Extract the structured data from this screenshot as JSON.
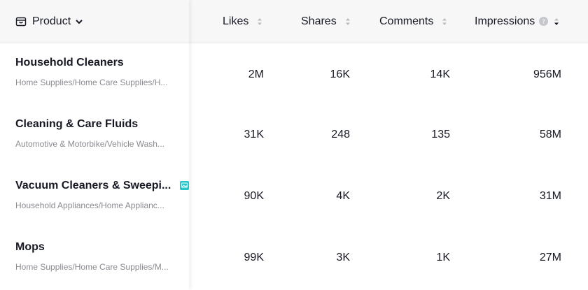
{
  "columns": {
    "product": "Product",
    "likes": "Likes",
    "shares": "Shares",
    "comments": "Comments",
    "impressions": "Impressions"
  },
  "rows": [
    {
      "name": "Household Cleaners",
      "category": "Home Supplies/Home Care Supplies/H...",
      "likes": "2M",
      "shares": "16K",
      "comments": "14K",
      "impressions": "956M"
    },
    {
      "name": "Cleaning & Care Fluids",
      "category": "Automotive & Motorbike/Vehicle Wash...",
      "likes": "31K",
      "shares": "248",
      "comments": "135",
      "impressions": "58M"
    },
    {
      "name": "Vacuum Cleaners & Sweepi...",
      "category": "Household Appliances/Home Applianc...",
      "likes": "90K",
      "shares": "4K",
      "comments": "2K",
      "impressions": "31M"
    },
    {
      "name": "Mops",
      "category": "Home Supplies/Home Care Supplies/M...",
      "likes": "99K",
      "shares": "3K",
      "comments": "1K",
      "impressions": "27M"
    }
  ],
  "colors": {
    "header_bg": "#f7f7f8",
    "text": "#161823",
    "muted": "#8a8b91",
    "badge": "#25c4c9"
  }
}
